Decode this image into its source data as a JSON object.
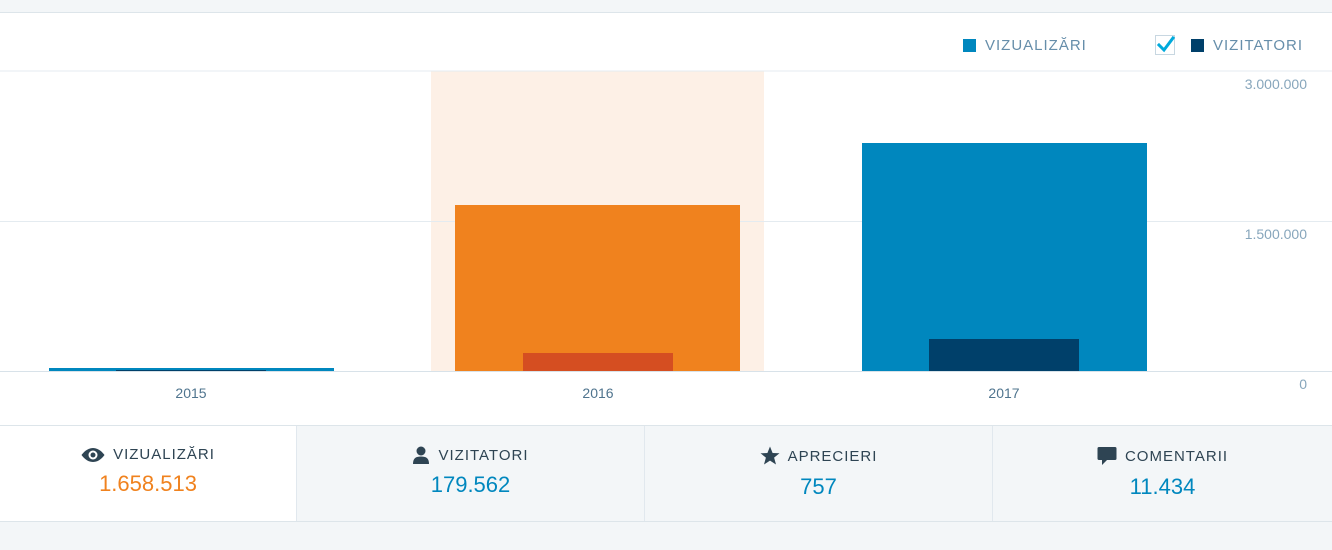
{
  "colors": {
    "views": "#0087be",
    "visitors": "#00406a",
    "views_highlight": "#f0821e",
    "visitors_highlight": "#d54e21",
    "highlight_bg": "#fdf0e6"
  },
  "legend": {
    "views_label": "VIZUALIZĂRI",
    "visitors_label": "VIZITATORI",
    "visitors_checked": true
  },
  "chart_data": {
    "type": "bar",
    "categories": [
      "2015",
      "2016",
      "2017"
    ],
    "series": [
      {
        "name": "VIZUALIZĂRI",
        "values": [
          30000,
          1658513,
          2280000
        ]
      },
      {
        "name": "VIZITATORI",
        "values": [
          15000,
          179562,
          320000
        ]
      }
    ],
    "highlighted_category": "2016",
    "ylim": [
      0,
      3000000
    ],
    "yticks": [
      "3.000.000",
      "1.500.000",
      "0"
    ],
    "ytick_values": [
      3000000,
      1500000,
      0
    ],
    "xlabel": "",
    "ylabel": "",
    "grid": true,
    "legend_position": "top-right"
  },
  "stats": [
    {
      "icon": "eye-icon",
      "label": "VIZUALIZĂRI",
      "value": "1.658.513",
      "active": true
    },
    {
      "icon": "person-icon",
      "label": "VIZITATORI",
      "value": "179.562",
      "active": false
    },
    {
      "icon": "star-icon",
      "label": "APRECIERI",
      "value": "757",
      "active": false
    },
    {
      "icon": "comment-icon",
      "label": "COMENTARII",
      "value": "11.434",
      "active": false
    }
  ]
}
